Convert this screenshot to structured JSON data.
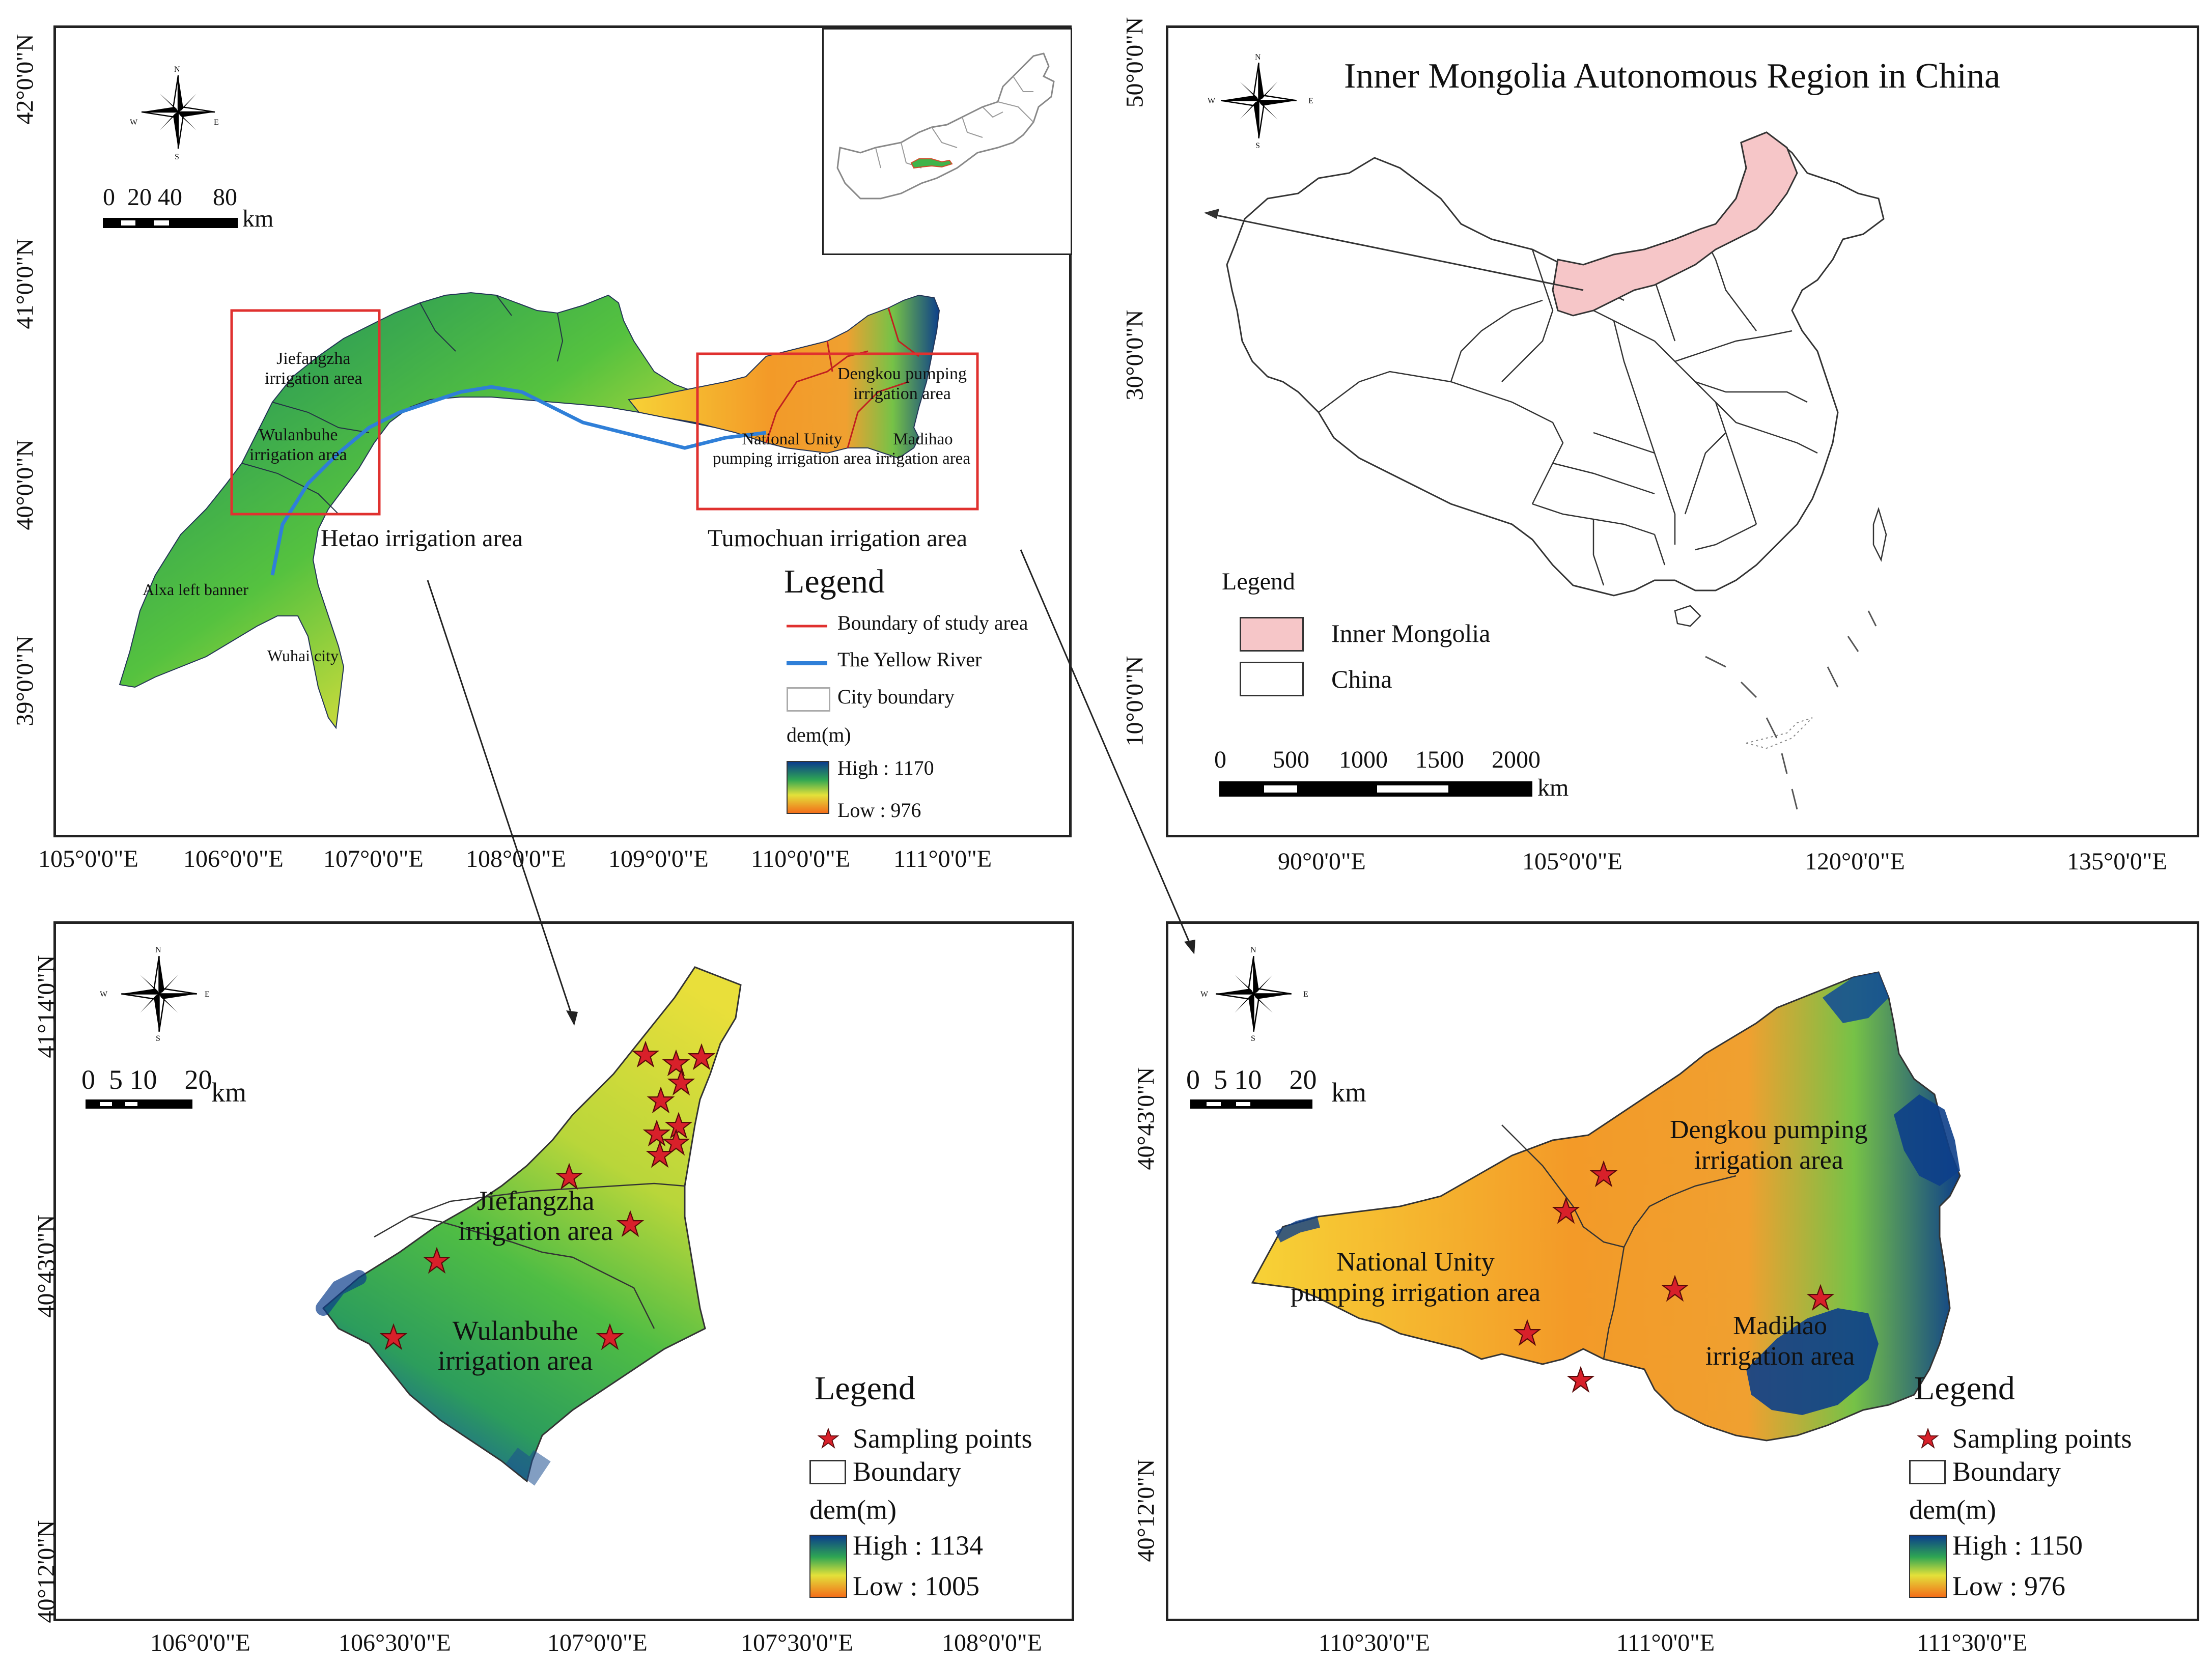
{
  "colors": {
    "dem_high": "#0b3d8c",
    "dem_mid": "#36b84a",
    "dem_yellow": "#e8e23a",
    "dem_low": "#f07b1b",
    "inner_mongolia_fill": "#f6c6c8",
    "boundary_red": "#e0312f",
    "yellow_river": "#2f7fd8",
    "star": "#d8202a"
  },
  "compass": {
    "n": "N",
    "s": "S",
    "e": "E",
    "w": "W"
  },
  "panel_tl": {
    "y_ticks": [
      "42°0'0\"N",
      "41°0'0\"N",
      "40°0'0\"N",
      "39°0'0\"N"
    ],
    "x_ticks": [
      "105°0'0\"E",
      "106°0'0\"E",
      "107°0'0\"E",
      "108°0'0\"E",
      "109°0'0\"E",
      "110°0'0\"E",
      "111°0'0\"E"
    ],
    "scale_numbers": "0  20 40     80",
    "scale_unit": "km",
    "labels": {
      "jiefangzha": "Jiefangzha\nirrigation area",
      "wulanbuhe": "Wulanbuhe\nirrigation area",
      "alxa": "Alxa left banner",
      "wuhai": "Wuhai city",
      "dengkou": "Dengkou pumping\nirrigation area",
      "national_unity": "National Unity\npumping irrigation area",
      "madihao": "Madihao\nirrigation area",
      "hetao": "Hetao irrigation area",
      "tumochuan": "Tumochuan irrigation area"
    },
    "legend": {
      "title": "Legend",
      "boundary": "Boundary of study area",
      "river": "The Yellow River",
      "city": "City boundary",
      "dem": "dem(m)",
      "high": "High : 1170",
      "low": "Low : 976"
    }
  },
  "panel_tr": {
    "title": "Inner Mongolia Autonomous Region in China",
    "y_ticks": [
      "50°0'0\"N",
      "30°0'0\"N",
      "10°0'0\"N"
    ],
    "x_ticks": [
      "90°0'0\"E",
      "105°0'0\"E",
      "120°0'0\"E",
      "135°0'0\"E"
    ],
    "legend": {
      "title": "Legend",
      "inner_mongolia": "Inner Mongolia",
      "china": "China"
    },
    "scale_numbers": [
      "0",
      "500",
      "1000",
      "1500",
      "2000"
    ],
    "scale_unit": "km"
  },
  "panel_bl": {
    "y_ticks": [
      "41°14'0\"N",
      "40°43'0\"N",
      "40°12'0\"N"
    ],
    "x_ticks": [
      "106°0'0\"E",
      "106°30'0\"E",
      "107°0'0\"E",
      "107°30'0\"E",
      "108°0'0\"E"
    ],
    "scale_numbers": "0  5 10    20",
    "scale_unit": "km",
    "labels": {
      "jiefangzha": "Jiefangzha\nirrigation area",
      "wulanbuhe": "Wulanbuhe\nirrigation area"
    },
    "legend": {
      "title": "Legend",
      "sampling": "Sampling points",
      "boundary": "Boundary",
      "dem": "dem(m)",
      "high": "High : 1134",
      "low": "Low : 1005"
    }
  },
  "panel_br": {
    "y_ticks": [
      "40°43'0\"N",
      "40°12'0\"N"
    ],
    "x_ticks": [
      "110°30'0\"E",
      "111°0'0\"E",
      "111°30'0\"E"
    ],
    "scale_numbers": "0  5 10    20",
    "scale_unit": "km",
    "labels": {
      "dengkou": "Dengkou pumping\nirrigation area",
      "national_unity": "National Unity\npumping irrigation area",
      "madihao": "Madihao\nirrigation area"
    },
    "legend": {
      "title": "Legend",
      "sampling": "Sampling points",
      "boundary": "Boundary",
      "dem": "dem(m)",
      "high": "High : 1150",
      "low": "Low : 976"
    }
  }
}
